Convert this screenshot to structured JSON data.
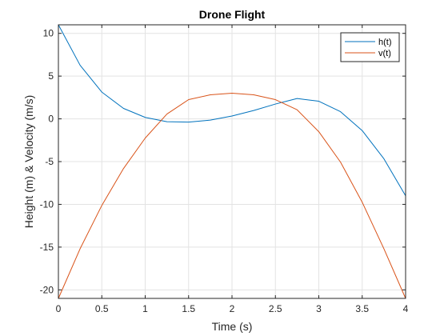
{
  "chart_data": {
    "type": "line",
    "title": "Drone Flight",
    "xlabel": "Time (s)",
    "ylabel": "Height (m) & Velocity (m/s)",
    "xlim": [
      0,
      4
    ],
    "ylim": [
      -21,
      11
    ],
    "xticks": [
      0,
      0.5,
      1,
      1.5,
      2,
      2.5,
      3,
      3.5,
      4
    ],
    "xtick_labels": [
      "0",
      "0.5",
      "1",
      "1.5",
      "2",
      "2.5",
      "3",
      "3.5",
      "4"
    ],
    "yticks": [
      10,
      5,
      0,
      -5,
      -10,
      -15,
      -20
    ],
    "ytick_labels": [
      "10",
      "5",
      "0",
      "-5",
      "-10",
      "-15",
      "-20"
    ],
    "grid": true,
    "legend_position": "top-right",
    "series": [
      {
        "name": "h(t)",
        "color": "#0072BD",
        "x": [
          0,
          0.25,
          0.5,
          0.75,
          1,
          1.25,
          1.5,
          1.75,
          2,
          2.25,
          2.5,
          2.75,
          3,
          3.25,
          3.5,
          3.75,
          4
        ],
        "y": [
          11,
          6.27,
          3.13,
          1.22,
          0.17,
          -0.33,
          -0.38,
          -0.15,
          0.33,
          0.98,
          1.73,
          2.38,
          2.06,
          0.84,
          -1.37,
          -4.67,
          -9
        ]
      },
      {
        "name": "v(t)",
        "color": "#D95319",
        "x": [
          0,
          0.25,
          0.5,
          0.75,
          1,
          1.25,
          1.5,
          1.75,
          2,
          2.25,
          2.5,
          2.75,
          3,
          3.25,
          3.5,
          3.75,
          4
        ],
        "y": [
          -21,
          -15.19,
          -10.13,
          -5.81,
          -2.25,
          0.56,
          2.25,
          2.81,
          3,
          2.81,
          2.25,
          1.06,
          -1.5,
          -5.06,
          -9.75,
          -15.19,
          -21
        ]
      }
    ]
  }
}
